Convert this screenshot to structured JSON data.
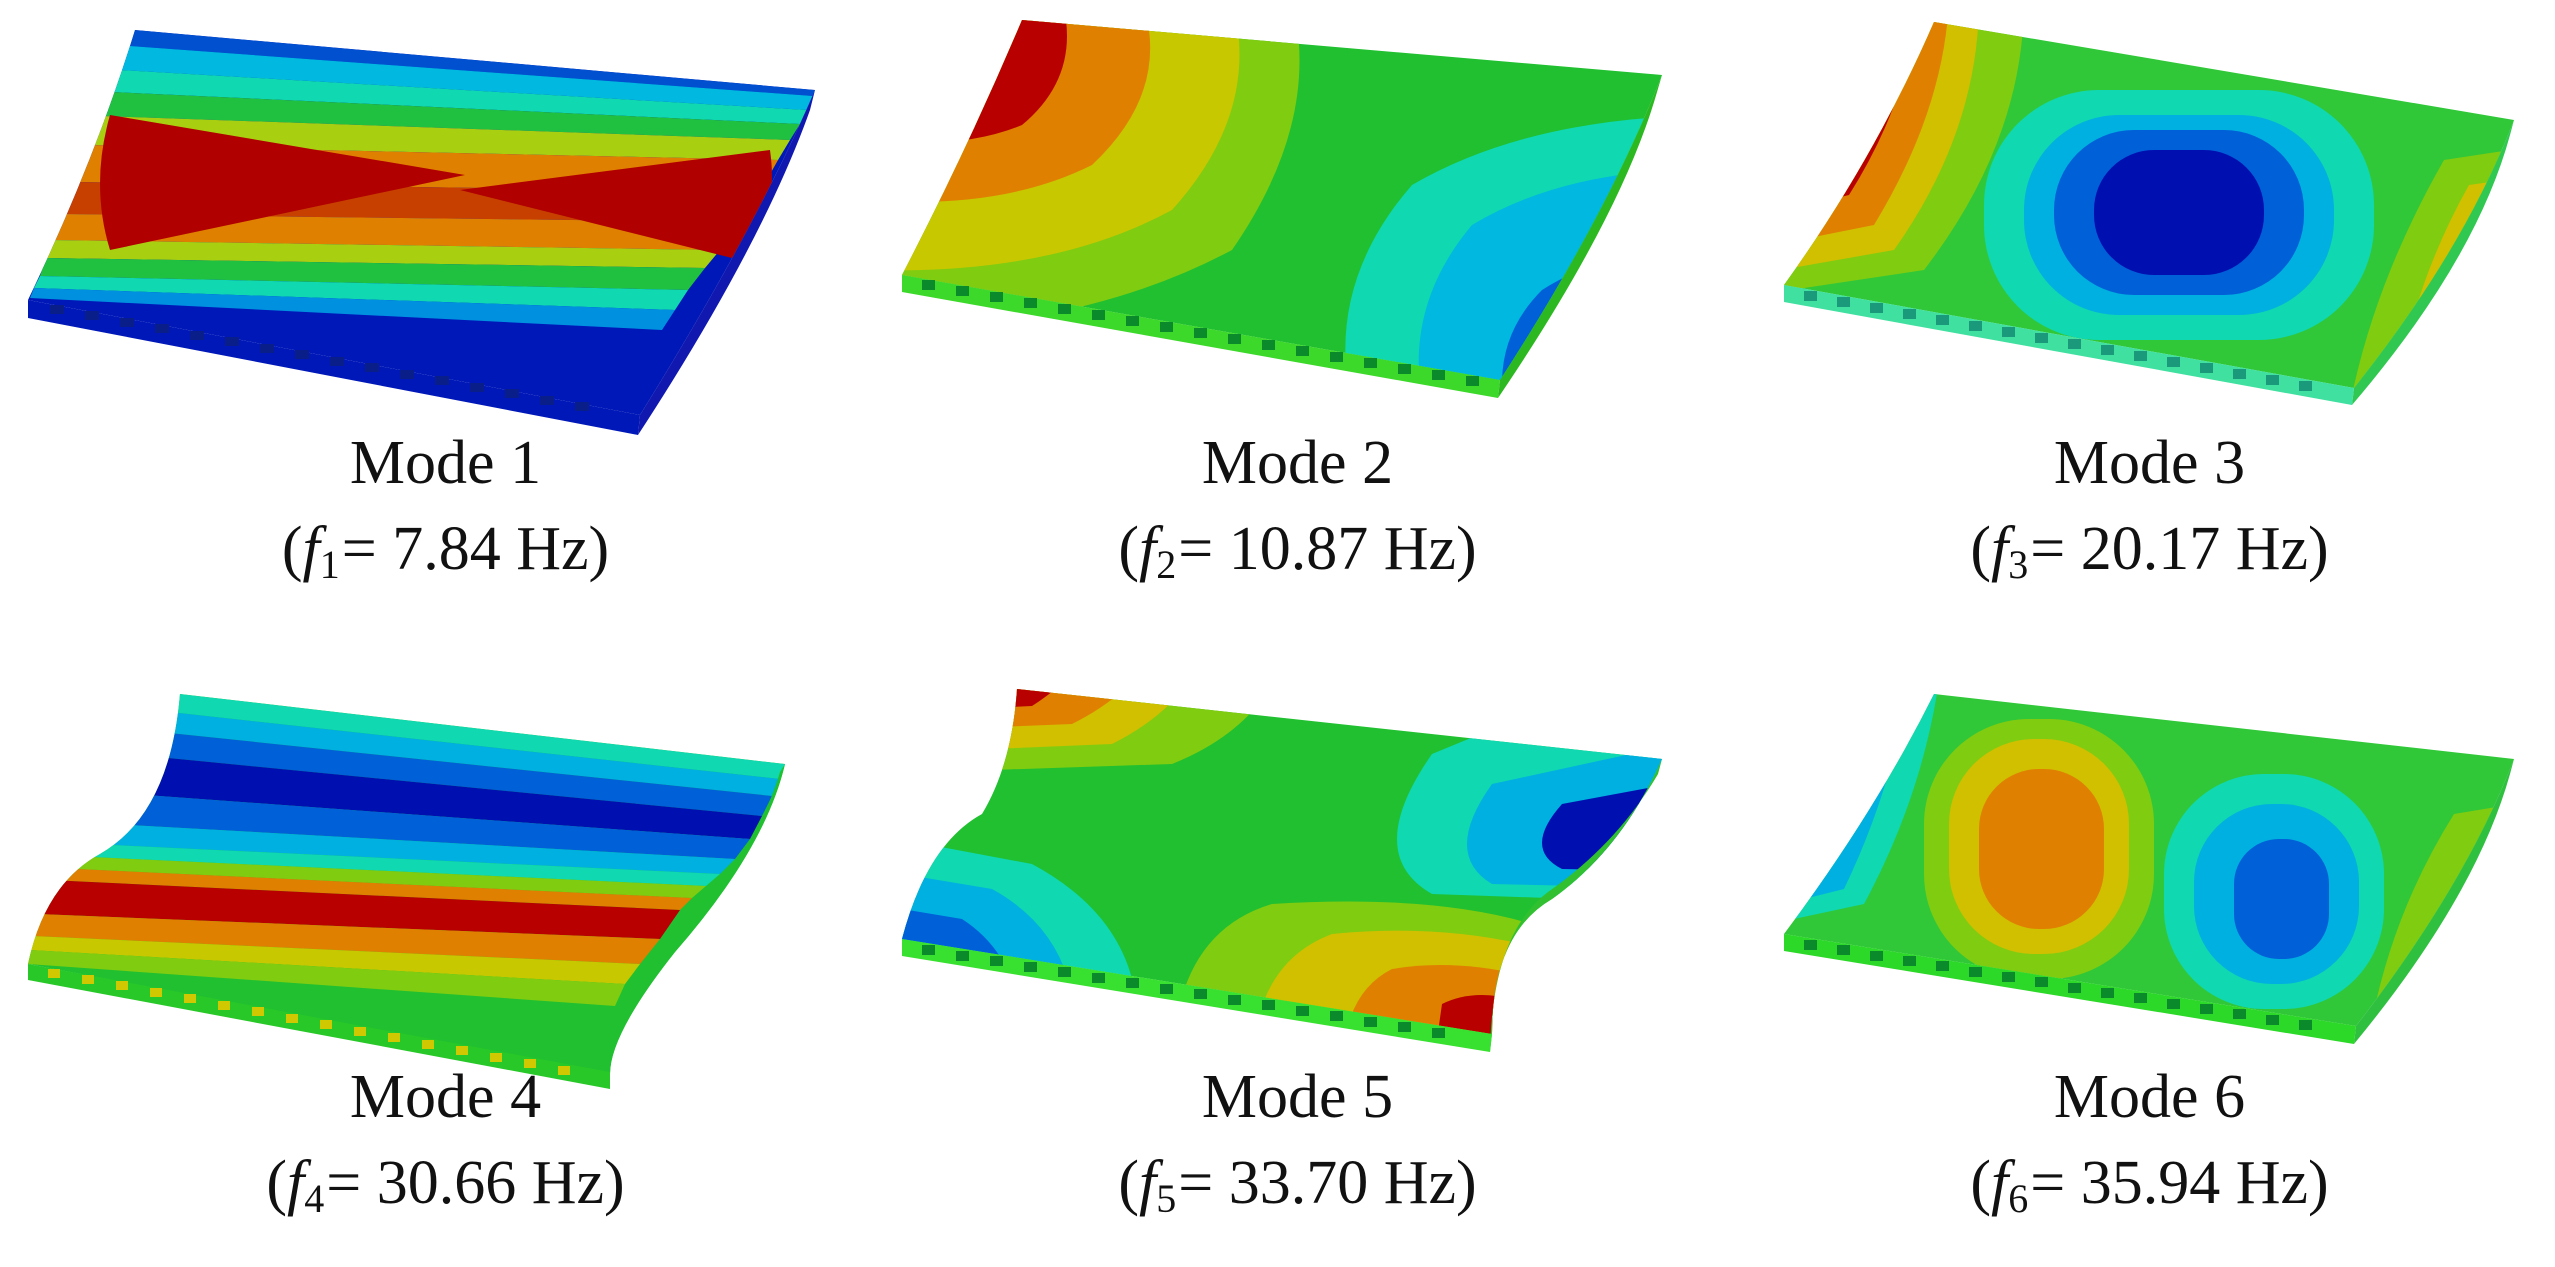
{
  "colors": {
    "contour_scale": [
      "#0010b0",
      "#0060d8",
      "#00b0e0",
      "#10d8b0",
      "#20c040",
      "#5cd020",
      "#a8d010",
      "#e0c000",
      "#e08000",
      "#c83000",
      "#b00000"
    ],
    "edge_panel": "#1fd01f",
    "edge_holes": "#0a8a2a"
  },
  "modes": [
    {
      "name": "Mode 1",
      "symbol": "f",
      "index": "1",
      "value": "= 7.84 Hz",
      "shape_icon": "mode-1-deformed-plate"
    },
    {
      "name": "Mode 2",
      "symbol": "f",
      "index": "2",
      "value": "= 10.87 Hz",
      "shape_icon": "mode-2-deformed-plate"
    },
    {
      "name": "Mode 3",
      "symbol": "f",
      "index": "3",
      "value": "= 20.17 Hz",
      "shape_icon": "mode-3-deformed-plate"
    },
    {
      "name": "Mode 4",
      "symbol": "f",
      "index": "4",
      "value": "= 30.66 Hz",
      "shape_icon": "mode-4-deformed-plate"
    },
    {
      "name": "Mode 5",
      "symbol": "f",
      "index": "5",
      "value": "= 33.70 Hz",
      "shape_icon": "mode-5-deformed-plate"
    },
    {
      "name": "Mode 6",
      "symbol": "f",
      "index": "6",
      "value": "= 35.94 Hz",
      "shape_icon": "mode-6-deformed-plate"
    }
  ]
}
